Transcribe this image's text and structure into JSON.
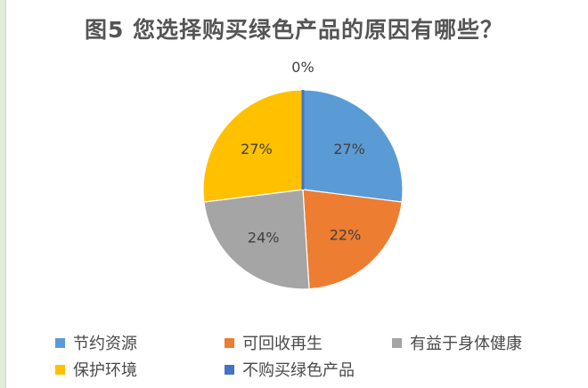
{
  "chart_data": {
    "type": "pie",
    "title": "图5  您选择购买绿色产品的原因有哪些？",
    "categories": [
      "节约资源",
      "可回收再生",
      "有益于身体健康",
      "保护环境",
      "不购买绿色产品"
    ],
    "values": [
      27,
      22,
      24,
      27,
      0
    ],
    "labels": [
      "27%",
      "22%",
      "24%",
      "27%",
      "0%"
    ],
    "colors": [
      "#5b9bd5",
      "#ed7d31",
      "#a5a5a5",
      "#ffc000",
      "#4472c4"
    ],
    "legend_position": "bottom",
    "start": "top",
    "direction": "clockwise"
  }
}
